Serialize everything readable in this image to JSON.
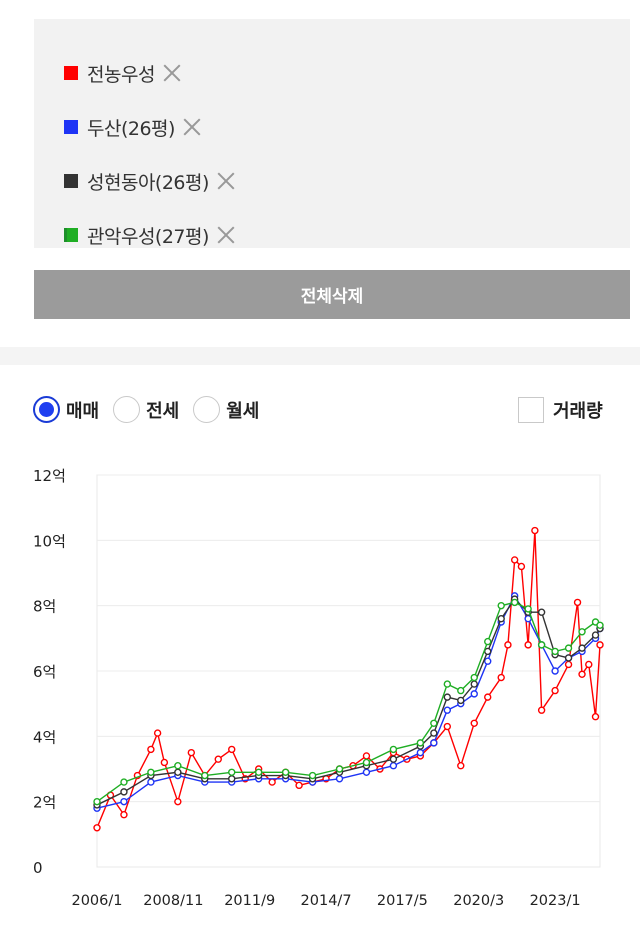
{
  "legend": {
    "items": [
      {
        "label": "전농우성",
        "color": "#ff0000"
      },
      {
        "label": "두산(26평)",
        "color": "#1e34f5"
      },
      {
        "label": "성현동아(26평)",
        "color": "#333333"
      },
      {
        "label": "관악우성(27평)",
        "color": "#1fae24"
      }
    ]
  },
  "delete_all_label": "전체삭제",
  "trade_types": [
    {
      "label": "매매",
      "selected": true
    },
    {
      "label": "전세",
      "selected": false
    },
    {
      "label": "월세",
      "selected": false
    }
  ],
  "volume_label": "거래량",
  "chart_data": {
    "type": "line",
    "x_tick_labels": [
      "2006/1",
      "2008/11",
      "2011/9",
      "2014/7",
      "2017/5",
      "2020/3",
      "2023/1"
    ],
    "y_tick_labels": [
      "0",
      "2억",
      "4억",
      "6억",
      "8억",
      "10억",
      "12억"
    ],
    "ylim": [
      0,
      12
    ],
    "y_unit": "억",
    "xlim": [
      "2006/1",
      "2024/9"
    ],
    "grid": true,
    "series": [
      {
        "name": "전농우성",
        "color": "#ff0000",
        "x": [
          "2006/1",
          "2006/7",
          "2007/1",
          "2007/7",
          "2008/1",
          "2008/4",
          "2008/7",
          "2009/1",
          "2009/7",
          "2010/1",
          "2010/7",
          "2011/1",
          "2011/7",
          "2012/1",
          "2012/7",
          "2013/1",
          "2013/7",
          "2014/1",
          "2014/7",
          "2015/1",
          "2015/7",
          "2016/1",
          "2016/7",
          "2017/1",
          "2017/7",
          "2018/1",
          "2018/7",
          "2019/1",
          "2019/7",
          "2020/1",
          "2020/7",
          "2021/1",
          "2021/4",
          "2021/7",
          "2021/10",
          "2022/1",
          "2022/4",
          "2022/7",
          "2023/1",
          "2023/7",
          "2023/11",
          "2024/1",
          "2024/4",
          "2024/7",
          "2024/9"
        ],
        "values": [
          1.2,
          2.2,
          1.6,
          2.8,
          3.6,
          4.1,
          3.2,
          2.0,
          3.5,
          2.8,
          3.3,
          3.6,
          2.7,
          3.0,
          2.6,
          2.9,
          2.5,
          2.6,
          2.7,
          3.0,
          3.1,
          3.4,
          3.0,
          3.5,
          3.3,
          3.4,
          3.8,
          4.3,
          3.1,
          4.4,
          5.2,
          5.8,
          6.8,
          9.4,
          9.2,
          6.8,
          10.3,
          4.8,
          5.4,
          6.2,
          8.1,
          5.9,
          6.2,
          4.6,
          6.8
        ]
      },
      {
        "name": "두산(26평)",
        "color": "#1e34f5",
        "x": [
          "2006/1",
          "2007/1",
          "2008/1",
          "2009/1",
          "2010/1",
          "2011/1",
          "2012/1",
          "2013/1",
          "2014/1",
          "2015/1",
          "2016/1",
          "2017/1",
          "2018/1",
          "2018/7",
          "2019/1",
          "2019/7",
          "2020/1",
          "2020/7",
          "2021/1",
          "2021/7",
          "2022/1",
          "2022/7",
          "2023/1",
          "2023/7",
          "2024/1",
          "2024/7",
          "2024/9"
        ],
        "values": [
          1.8,
          2.0,
          2.6,
          2.8,
          2.6,
          2.6,
          2.7,
          2.7,
          2.6,
          2.7,
          2.9,
          3.1,
          3.5,
          3.8,
          4.8,
          5.0,
          5.3,
          6.3,
          7.5,
          8.3,
          7.6,
          6.8,
          6.0,
          6.4,
          6.6,
          7.0,
          7.3
        ]
      },
      {
        "name": "성현동아(26평)",
        "color": "#333333",
        "x": [
          "2006/1",
          "2007/1",
          "2008/1",
          "2009/1",
          "2010/1",
          "2011/1",
          "2012/1",
          "2013/1",
          "2014/1",
          "2015/1",
          "2016/1",
          "2017/1",
          "2018/1",
          "2018/7",
          "2019/1",
          "2019/7",
          "2020/1",
          "2020/7",
          "2021/1",
          "2021/7",
          "2022/1",
          "2022/7",
          "2023/1",
          "2023/7",
          "2024/1",
          "2024/7",
          "2024/9"
        ],
        "values": [
          1.9,
          2.3,
          2.8,
          2.9,
          2.7,
          2.7,
          2.8,
          2.8,
          2.7,
          2.9,
          3.1,
          3.3,
          3.7,
          4.1,
          5.2,
          5.1,
          5.6,
          6.6,
          7.6,
          8.2,
          7.8,
          7.8,
          6.5,
          6.4,
          6.7,
          7.1,
          7.3
        ]
      },
      {
        "name": "관악우성(27평)",
        "color": "#1fae24",
        "x": [
          "2006/1",
          "2007/1",
          "2008/1",
          "2009/1",
          "2010/1",
          "2011/1",
          "2012/1",
          "2013/1",
          "2014/1",
          "2015/1",
          "2016/1",
          "2017/1",
          "2018/1",
          "2018/7",
          "2019/1",
          "2019/7",
          "2020/1",
          "2020/7",
          "2021/1",
          "2021/7",
          "2022/1",
          "2022/7",
          "2023/1",
          "2023/7",
          "2024/1",
          "2024/7",
          "2024/9"
        ],
        "values": [
          2.0,
          2.6,
          2.9,
          3.1,
          2.8,
          2.9,
          2.9,
          2.9,
          2.8,
          3.0,
          3.2,
          3.6,
          3.8,
          4.4,
          5.6,
          5.4,
          5.8,
          6.9,
          8.0,
          8.1,
          7.9,
          6.8,
          6.6,
          6.7,
          7.2,
          7.5,
          7.4
        ]
      }
    ]
  }
}
